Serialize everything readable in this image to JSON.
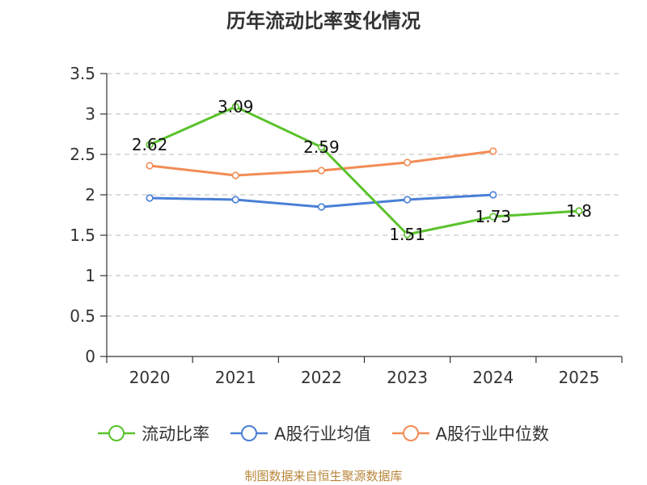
{
  "chart_data": {
    "type": "line",
    "title": "历年流动比率变化情况",
    "categories": [
      "2020",
      "2021",
      "2022",
      "2023",
      "2024",
      "2025"
    ],
    "ylim": [
      0,
      3.5
    ],
    "yticks": [
      "0",
      "0.5",
      "1",
      "1.5",
      "2",
      "2.5",
      "3",
      "3.5"
    ],
    "grid": "dashed horizontal",
    "legend_position": "bottom",
    "series": [
      {
        "name": "流动比率",
        "color": "#5ac22c",
        "values": [
          2.62,
          3.09,
          2.59,
          1.51,
          1.73,
          1.8
        ],
        "labels": [
          "2.62",
          "3.09",
          "2.59",
          "1.51",
          "1.73",
          "1.8"
        ]
      },
      {
        "name": "A股行业均值",
        "color": "#4a7fd6",
        "values": [
          1.96,
          1.94,
          1.85,
          1.94,
          2.0,
          null
        ]
      },
      {
        "name": "A股行业中位数",
        "color": "#f28c55",
        "values": [
          2.36,
          2.24,
          2.3,
          2.4,
          2.54,
          null
        ]
      }
    ]
  },
  "source_note": "制图数据来自恒生聚源数据库"
}
